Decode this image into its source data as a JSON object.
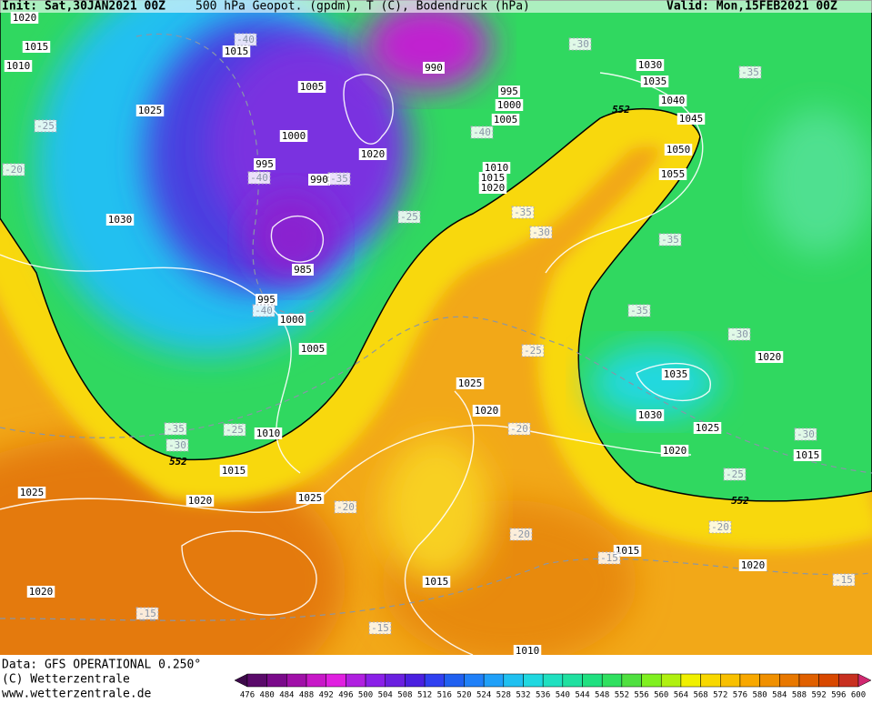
{
  "header": {
    "init": "Init: Sat,30JAN2021 00Z",
    "title": "500 hPa Geopot. (gpdm), T (C), Bodendruck (hPa)",
    "valid": "Valid: Mon,15FEB2021 00Z"
  },
  "map": {
    "isobar_labels": [
      1015,
      1010,
      1025,
      1030,
      1015,
      1005,
      1000,
      995,
      990,
      985,
      995,
      1000,
      1005,
      990,
      995,
      1000,
      1005,
      1020,
      1010,
      1015,
      1020,
      1030,
      1035,
      1040,
      1045,
      1050,
      1055,
      1025,
      1020,
      1010,
      1015,
      1020,
      1025,
      1025,
      1020,
      1015,
      1015,
      1020,
      1030,
      1025,
      1020,
      1035,
      1020,
      1015,
      1010,
      1020
    ],
    "temperature_labels": [
      -40,
      -40,
      -35,
      -40,
      -30,
      -35,
      -25,
      -20,
      -25,
      -35,
      -30,
      -35,
      -35,
      -30,
      -25,
      -20,
      -35,
      -30,
      -25,
      -20,
      -20,
      -15,
      -20,
      -25,
      -30,
      -15,
      -15,
      -15,
      -40
    ],
    "height_labels": [
      552,
      552,
      552
    ]
  },
  "footer": {
    "source": "Data: GFS OPERATIONAL 0.250°",
    "copyright": "(C) Wetterzentrale",
    "url": "www.wetterzentrale.de"
  },
  "colorbar": {
    "labels": [
      476,
      480,
      484,
      488,
      492,
      496,
      500,
      504,
      508,
      512,
      516,
      520,
      524,
      528,
      532,
      536,
      540,
      544,
      548,
      552,
      556,
      560,
      564,
      568,
      572,
      576,
      580,
      584,
      588,
      592,
      596,
      600
    ],
    "colors": [
      "#3d0a4a",
      "#5a0a6a",
      "#7a0a8a",
      "#a010a8",
      "#c818c8",
      "#e020e0",
      "#b020e0",
      "#8a20e8",
      "#6a20e0",
      "#4a20e0",
      "#3040f0",
      "#2060f0",
      "#2080f8",
      "#20a0f8",
      "#20c0f0",
      "#20d8e0",
      "#20e0c0",
      "#20e0a0",
      "#20e080",
      "#30e060",
      "#50e040",
      "#80f020",
      "#b0f010",
      "#f0f000",
      "#f8d800",
      "#f8c000",
      "#f8a800",
      "#f09000",
      "#e87800",
      "#e06000",
      "#d84800",
      "#c83020",
      "#d02870"
    ]
  }
}
